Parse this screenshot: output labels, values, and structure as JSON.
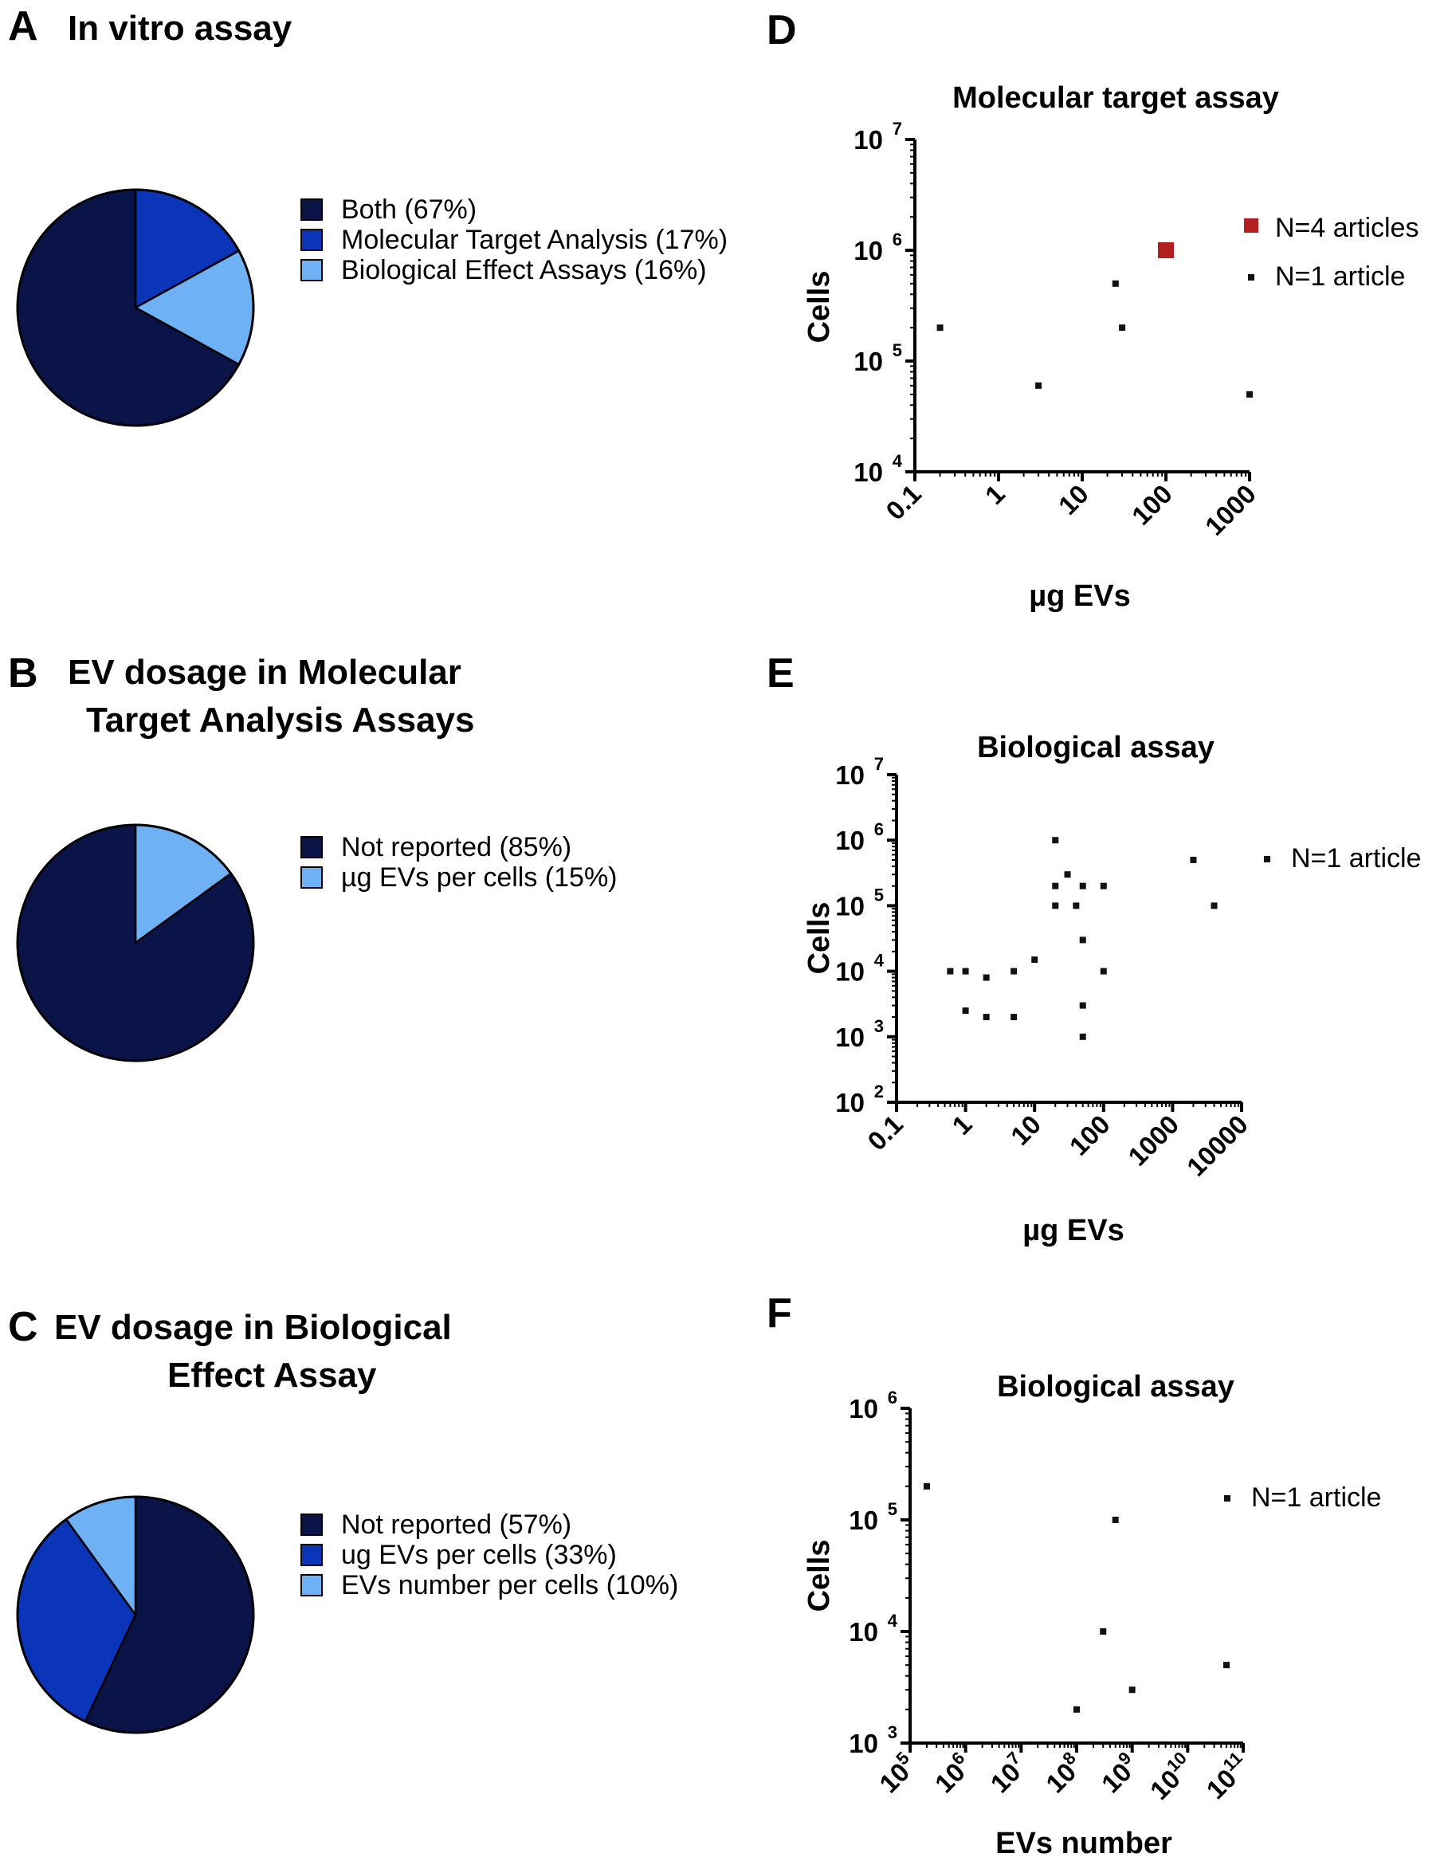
{
  "colors": {
    "dark_navy": "#0b1448",
    "blue": "#0a35b8",
    "light_blue": "#6fb1f5",
    "red": "#b11f1f",
    "black": "#111111"
  },
  "chart_data": [
    {
      "panel": "A",
      "type": "pie",
      "title": "In vitro assay",
      "slices": [
        {
          "label": "Both (67%)",
          "value": 67,
          "color": "#0b1448"
        },
        {
          "label": "Molecular Target Analysis (17%)",
          "value": 17,
          "color": "#0a35b8"
        },
        {
          "label": "Biological Effect Assays (16%)",
          "value": 16,
          "color": "#6fb1f5"
        }
      ],
      "order": [
        1,
        2,
        0
      ]
    },
    {
      "panel": "B",
      "type": "pie",
      "title": [
        "EV dosage in Molecular",
        "Target Analysis Assays"
      ],
      "slices": [
        {
          "label": "Not reported (85%)",
          "value": 85,
          "color": "#0b1448"
        },
        {
          "label": "µg EVs per cells (15%)",
          "value": 15,
          "color": "#6fb1f5"
        }
      ],
      "order": [
        1,
        0
      ]
    },
    {
      "panel": "C",
      "type": "pie",
      "title": [
        "EV dosage in Biological",
        "Effect Assay"
      ],
      "slices": [
        {
          "label": "Not reported (57%)",
          "value": 57,
          "color": "#0b1448"
        },
        {
          "label": "ug EVs per cells (33%)",
          "value": 33,
          "color": "#0a35b8"
        },
        {
          "label": "EVs number per cells (10%)",
          "value": 10,
          "color": "#6fb1f5"
        }
      ],
      "order": [
        0,
        1,
        2
      ]
    },
    {
      "panel": "D",
      "type": "scatter",
      "title": "Molecular target assay",
      "xlabel": "µg EVs",
      "ylabel": "Cells",
      "xscale": "log",
      "yscale": "log",
      "xlim": [
        0.1,
        1000
      ],
      "ylim": [
        10000,
        10000000
      ],
      "xticks": [
        "0.1",
        "1",
        "10",
        "100",
        "1000"
      ],
      "yticks": [
        {
          "base": "10",
          "exp": "4"
        },
        {
          "base": "10",
          "exp": "5"
        },
        {
          "base": "10",
          "exp": "6"
        },
        {
          "base": "10",
          "exp": "7"
        }
      ],
      "legend": [
        {
          "label": "N=4 articles",
          "color": "#b11f1f",
          "size": "large"
        },
        {
          "label": "N=1 article",
          "color": "#111111",
          "size": "small"
        }
      ],
      "series": [
        {
          "name": "N=4 articles",
          "points": [
            [
              100,
              1000000
            ]
          ]
        },
        {
          "name": "N=1 article",
          "points": [
            [
              0.2,
              200000
            ],
            [
              3,
              60000
            ],
            [
              25,
              500000
            ],
            [
              30,
              200000
            ],
            [
              1000,
              50000
            ]
          ]
        }
      ]
    },
    {
      "panel": "E",
      "type": "scatter",
      "title": "Biological assay",
      "xlabel": "µg EVs",
      "ylabel": "Cells",
      "xscale": "log",
      "yscale": "log",
      "xlim": [
        0.1,
        10000
      ],
      "ylim": [
        100,
        10000000
      ],
      "xticks": [
        "0.1",
        "1",
        "10",
        "100",
        "1000",
        "10000"
      ],
      "yticks": [
        {
          "base": "10",
          "exp": "2"
        },
        {
          "base": "10",
          "exp": "3"
        },
        {
          "base": "10",
          "exp": "4"
        },
        {
          "base": "10",
          "exp": "5"
        },
        {
          "base": "10",
          "exp": "6"
        },
        {
          "base": "10",
          "exp": "7"
        }
      ],
      "legend": [
        {
          "label": "N=1 article",
          "color": "#111111",
          "size": "small"
        }
      ],
      "series": [
        {
          "name": "N=1 article",
          "points": [
            [
              0.6,
              10000
            ],
            [
              1,
              10000
            ],
            [
              1,
              2500
            ],
            [
              2,
              8000
            ],
            [
              2,
              2000
            ],
            [
              5,
              10000
            ],
            [
              5,
              2000
            ],
            [
              10,
              15000
            ],
            [
              20,
              1000000
            ],
            [
              20,
              200000
            ],
            [
              20,
              100000
            ],
            [
              30,
              300000
            ],
            [
              40,
              100000
            ],
            [
              50,
              200000
            ],
            [
              50,
              30000
            ],
            [
              50,
              3000
            ],
            [
              50,
              1000
            ],
            [
              100,
              200000
            ],
            [
              100,
              10000
            ],
            [
              2000,
              500000
            ],
            [
              4000,
              100000
            ]
          ]
        }
      ]
    },
    {
      "panel": "F",
      "type": "scatter",
      "title": "Biological assay",
      "xlabel": "EVs number",
      "ylabel": "Cells",
      "xscale": "log",
      "yscale": "log",
      "xlim": [
        100000,
        100000000000
      ],
      "ylim": [
        1000,
        1000000
      ],
      "xticks": [
        {
          "base": "10",
          "exp": "5"
        },
        {
          "base": "10",
          "exp": "6"
        },
        {
          "base": "10",
          "exp": "7"
        },
        {
          "base": "10",
          "exp": "8"
        },
        {
          "base": "10",
          "exp": "9"
        },
        {
          "base": "10",
          "exp": "10"
        },
        {
          "base": "10",
          "exp": "11"
        }
      ],
      "yticks": [
        {
          "base": "10",
          "exp": "3"
        },
        {
          "base": "10",
          "exp": "4"
        },
        {
          "base": "10",
          "exp": "5"
        },
        {
          "base": "10",
          "exp": "6"
        }
      ],
      "legend": [
        {
          "label": "N=1 article",
          "color": "#111111",
          "size": "small"
        }
      ],
      "series": [
        {
          "name": "N=1 article",
          "points": [
            [
              200000,
              200000
            ],
            [
              100000000,
              2000
            ],
            [
              300000000,
              10000
            ],
            [
              500000000,
              100000
            ],
            [
              1000000000,
              3000
            ],
            [
              50000000000,
              5000
            ]
          ]
        }
      ]
    }
  ]
}
